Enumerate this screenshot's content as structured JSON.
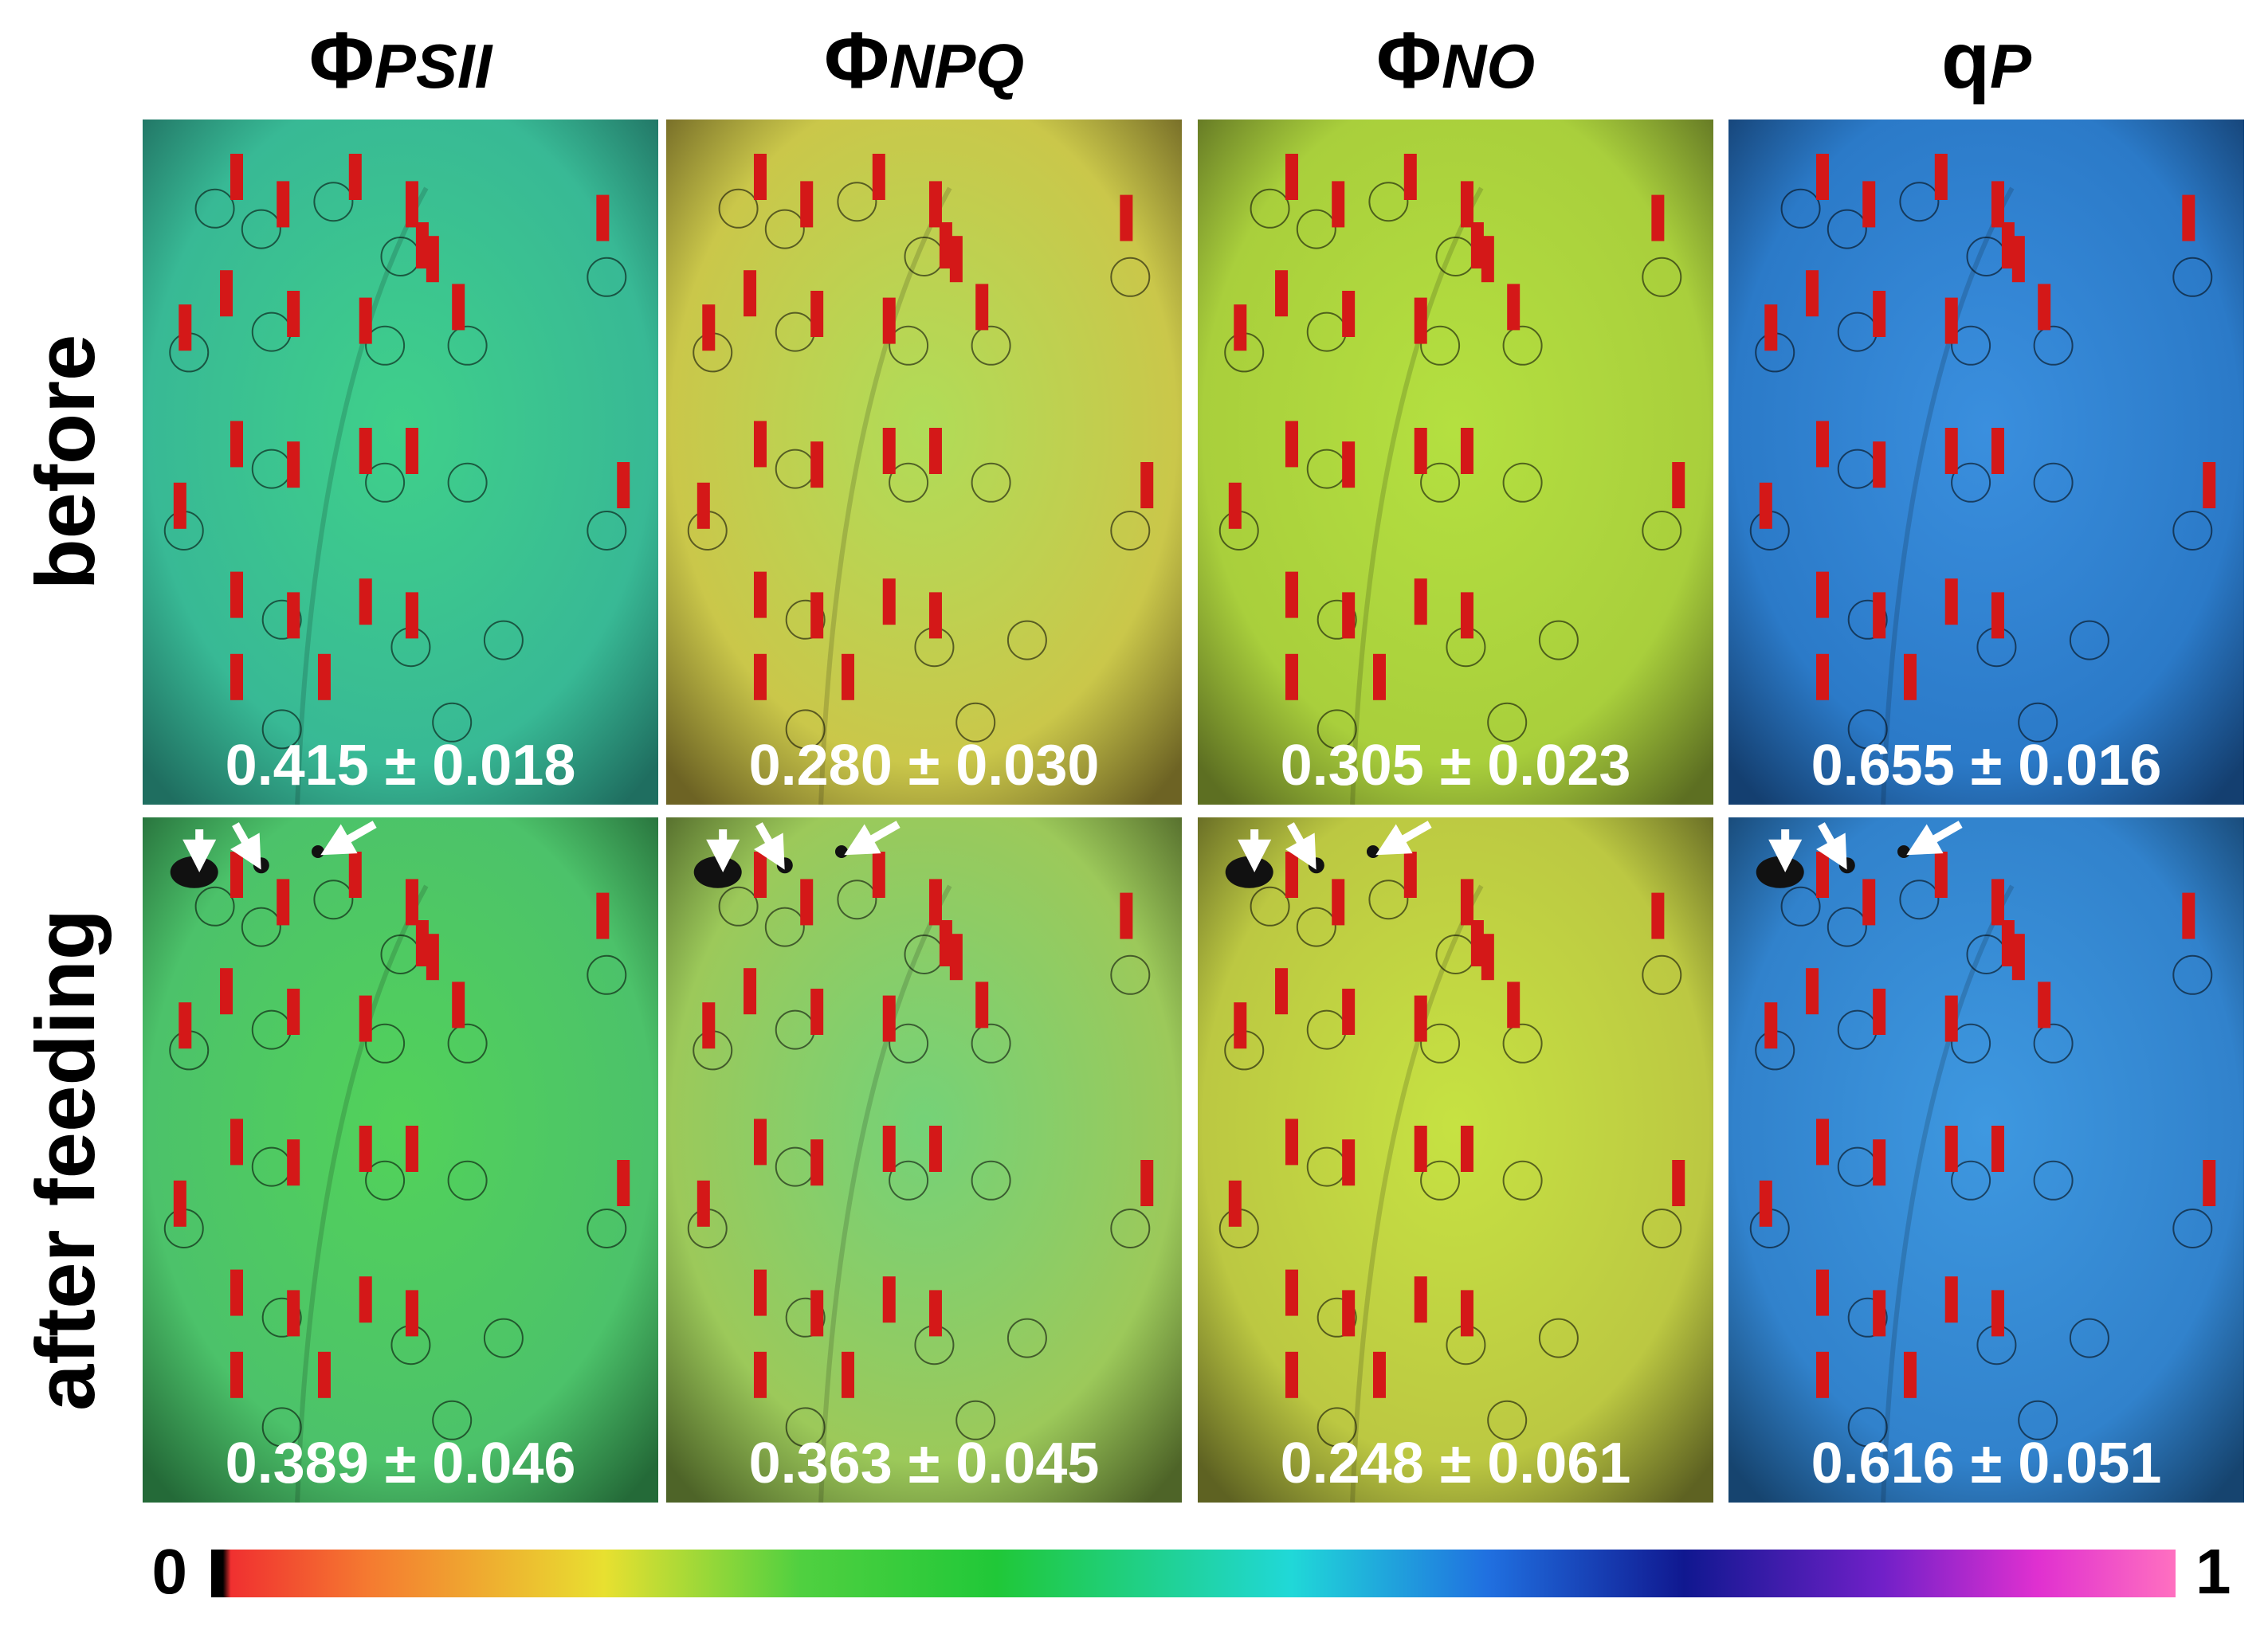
{
  "columns": [
    {
      "symbol": "Φ",
      "sub": "PSII"
    },
    {
      "symbol": "Φ",
      "sub": "NPQ"
    },
    {
      "symbol": "Φ",
      "sub": "NO"
    },
    {
      "symbol": "q",
      "sub": "P"
    }
  ],
  "rows": [
    {
      "label": "before",
      "values": [
        "0.415 ± 0.018",
        "0.280 ± 0.030",
        "0.305 ± 0.023",
        "0.655 ± 0.016"
      ]
    },
    {
      "label": "after feeding",
      "values": [
        "0.389 ± 0.046",
        "0.363 ± 0.045",
        "0.248 ± 0.061",
        "0.616 ± 0.051"
      ]
    }
  ],
  "colorbar": {
    "min_label": "0",
    "max_label": "1"
  }
}
